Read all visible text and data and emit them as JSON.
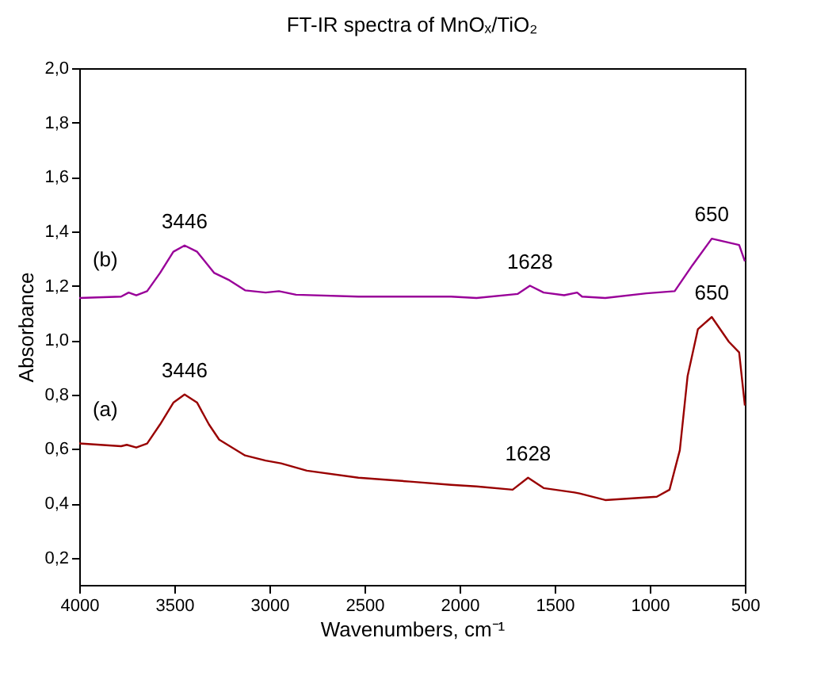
{
  "chart_data": {
    "type": "line",
    "title": "FT-IR spectra of MnOₓ/TiO₂",
    "xlabel": "Wavenumbers, cm⁻¹",
    "ylabel": "Absorbance",
    "xlim": [
      4000,
      500
    ],
    "xticks": [
      4000,
      3500,
      3000,
      2500,
      2000,
      1500,
      1000,
      500
    ],
    "ylim": [
      0.1,
      2.0
    ],
    "yticks": [
      {
        "value": 0.2,
        "label": "0,2"
      },
      {
        "value": 0.4,
        "label": "0,4"
      },
      {
        "value": 0.6,
        "label": "0,6"
      },
      {
        "value": 0.8,
        "label": "0,8"
      },
      {
        "value": 1.0,
        "label": "1,0"
      },
      {
        "value": 1.2,
        "label": "1,2"
      },
      {
        "value": 1.4,
        "label": "1,4"
      },
      {
        "value": 1.6,
        "label": "1,6"
      },
      {
        "value": 1.8,
        "label": "1,8"
      },
      {
        "value": 2.0,
        "label": "2,0"
      }
    ],
    "grid": false,
    "legend": false,
    "marker": "none",
    "line_style": "solid",
    "series": [
      {
        "name": "(a)",
        "color": "#990000",
        "x": [
          4000,
          3780,
          3750,
          3700,
          3643,
          3575,
          3505,
          3446,
          3380,
          3318,
          3264,
          3128,
          3020,
          2939,
          2803,
          2532,
          2262,
          2045,
          1911,
          1721,
          1640,
          1558,
          1396,
          1369,
          1234,
          963,
          896,
          842,
          801,
          747,
          674,
          584,
          530,
          500
        ],
        "values": [
          0.62,
          0.61,
          0.615,
          0.605,
          0.62,
          0.69,
          0.77,
          0.8,
          0.77,
          0.69,
          0.634,
          0.576,
          0.557,
          0.547,
          0.52,
          0.494,
          0.48,
          0.468,
          0.462,
          0.45,
          0.494,
          0.456,
          0.44,
          0.436,
          0.412,
          0.424,
          0.45,
          0.595,
          0.868,
          1.04,
          1.085,
          0.994,
          0.955,
          0.76
        ]
      },
      {
        "name": "(b)",
        "color": "#990099",
        "x": [
          4000,
          3780,
          3740,
          3700,
          3643,
          3575,
          3505,
          3446,
          3380,
          3290,
          3210,
          3128,
          3020,
          2950,
          2860,
          2532,
          2045,
          1911,
          1694,
          1630,
          1558,
          1450,
          1382,
          1356,
          1234,
          1018,
          869,
          775,
          674,
          530,
          500
        ],
        "values": [
          1.155,
          1.16,
          1.175,
          1.165,
          1.18,
          1.247,
          1.325,
          1.348,
          1.325,
          1.247,
          1.22,
          1.183,
          1.175,
          1.18,
          1.167,
          1.16,
          1.16,
          1.155,
          1.17,
          1.2,
          1.175,
          1.165,
          1.175,
          1.16,
          1.155,
          1.172,
          1.18,
          1.276,
          1.373,
          1.35,
          1.29
        ]
      }
    ],
    "annotations": [
      {
        "text": "3446",
        "x": 3446,
        "y": 1.348
      },
      {
        "text": "1628",
        "x": 1630,
        "y": 1.2
      },
      {
        "text": "650",
        "x": 674,
        "y": 1.373
      },
      {
        "text": "3446",
        "x": 3446,
        "y": 0.8
      },
      {
        "text": "1628",
        "x": 1640,
        "y": 0.494
      },
      {
        "text": "650",
        "x": 674,
        "y": 1.085
      }
    ]
  }
}
